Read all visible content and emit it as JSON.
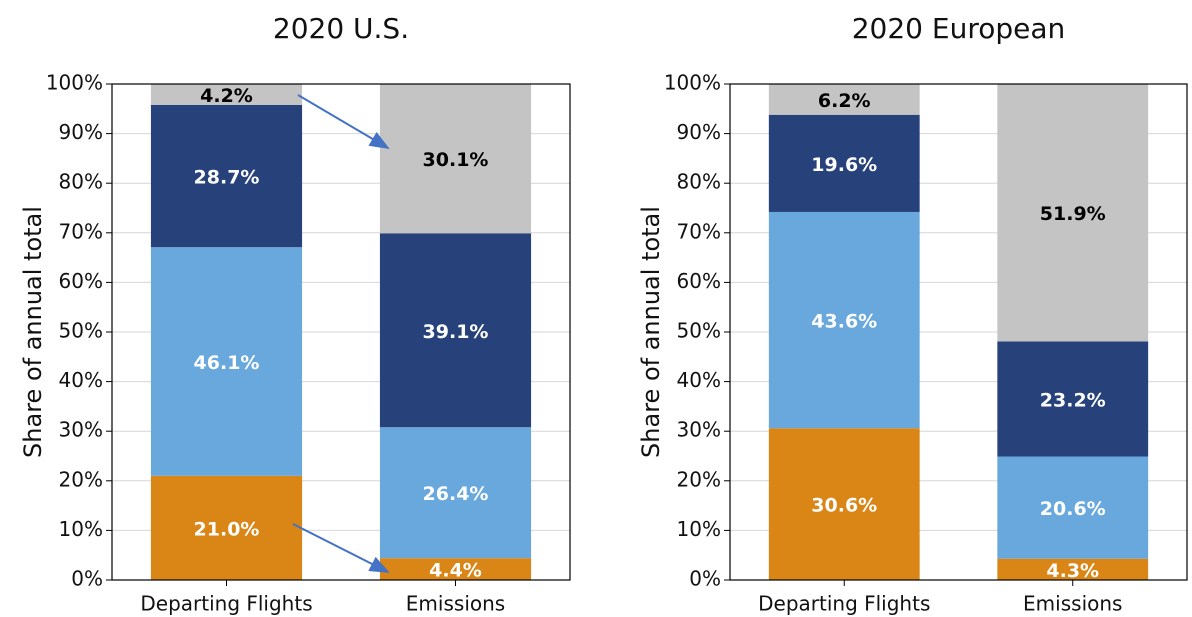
{
  "chart_data": [
    {
      "type": "stacked_bar",
      "title": "2020 U.S.",
      "ylabel": "Share of annual total",
      "categories": [
        "Departing Flights",
        "Emissions"
      ],
      "series": [
        {
          "color": "#d98616",
          "label_color": "#ffffff",
          "values": [
            21.0,
            4.4
          ],
          "value_labels": [
            "21.0%",
            "4.4%"
          ]
        },
        {
          "color": "#69a8dc",
          "label_color": "#ffffff",
          "values": [
            46.1,
            26.4
          ],
          "value_labels": [
            "46.1%",
            "26.4%"
          ]
        },
        {
          "color": "#27427a",
          "label_color": "#ffffff",
          "values": [
            28.7,
            39.1
          ],
          "value_labels": [
            "28.7%",
            "39.1%"
          ]
        },
        {
          "color": "#c4c4c4",
          "label_color": "#000000",
          "values": [
            4.2,
            30.1
          ],
          "value_labels": [
            "4.2%",
            "30.1%"
          ]
        }
      ],
      "ylim": [
        0,
        100
      ],
      "yticks": [
        {
          "value": 0,
          "label": "0%"
        },
        {
          "value": 10,
          "label": "10%"
        },
        {
          "value": 20,
          "label": "20%"
        },
        {
          "value": 30,
          "label": "30%"
        },
        {
          "value": 40,
          "label": "40%"
        },
        {
          "value": 50,
          "label": "50%"
        },
        {
          "value": 60,
          "label": "60%"
        },
        {
          "value": 70,
          "label": "70%"
        },
        {
          "value": 80,
          "label": "80%"
        },
        {
          "value": 90,
          "label": "90%"
        },
        {
          "value": 100,
          "label": "100%"
        }
      ],
      "grid": true
    },
    {
      "type": "stacked_bar",
      "title": "2020 European",
      "ylabel": "Share of annual total",
      "categories": [
        "Departing Flights",
        "Emissions"
      ],
      "series": [
        {
          "color": "#d98616",
          "label_color": "#ffffff",
          "values": [
            30.6,
            4.3
          ],
          "value_labels": [
            "30.6%",
            "4.3%"
          ]
        },
        {
          "color": "#69a8dc",
          "label_color": "#ffffff",
          "values": [
            43.6,
            20.6
          ],
          "value_labels": [
            "43.6%",
            "20.6%"
          ]
        },
        {
          "color": "#27427a",
          "label_color": "#ffffff",
          "values": [
            19.6,
            23.2
          ],
          "value_labels": [
            "19.6%",
            "23.2%"
          ]
        },
        {
          "color": "#c4c4c4",
          "label_color": "#000000",
          "values": [
            6.2,
            51.9
          ],
          "value_labels": [
            "6.2%",
            "51.9%"
          ]
        }
      ],
      "ylim": [
        0,
        100
      ],
      "yticks": [
        {
          "value": 0,
          "label": "0%"
        },
        {
          "value": 10,
          "label": "10%"
        },
        {
          "value": 20,
          "label": "20%"
        },
        {
          "value": 30,
          "label": "30%"
        },
        {
          "value": 40,
          "label": "40%"
        },
        {
          "value": 50,
          "label": "50%"
        },
        {
          "value": 60,
          "label": "60%"
        },
        {
          "value": 70,
          "label": "70%"
        },
        {
          "value": 80,
          "label": "80%"
        },
        {
          "value": 90,
          "label": "90%"
        },
        {
          "value": 100,
          "label": "100%"
        }
      ],
      "grid": true
    }
  ]
}
